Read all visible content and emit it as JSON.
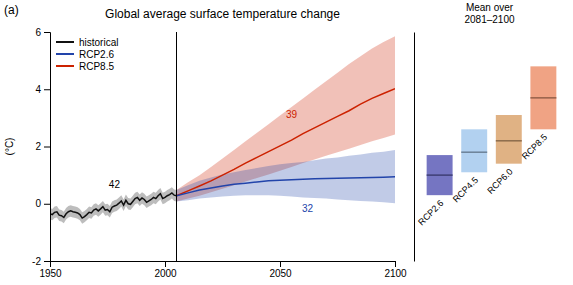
{
  "chart_data": [
    {
      "type": "line",
      "title": "Global average surface temperature change",
      "ylabel": "(°C)",
      "xlim": [
        1950,
        2100
      ],
      "ylim": [
        -2.0,
        6.0
      ],
      "xticks": [
        1950,
        2000,
        2050,
        2100
      ],
      "yticks": [
        -2,
        0,
        2,
        4,
        6
      ],
      "grid": false,
      "legend": "upper left",
      "vline_x": 2005,
      "series": [
        {
          "name": "historical",
          "color": "#111111",
          "x": [
            1950,
            1951,
            1952,
            1953,
            1954,
            1955,
            1956,
            1957,
            1958,
            1959,
            1960,
            1961,
            1962,
            1963,
            1964,
            1965,
            1966,
            1967,
            1968,
            1969,
            1970,
            1971,
            1972,
            1973,
            1974,
            1975,
            1976,
            1977,
            1978,
            1979,
            1980,
            1981,
            1982,
            1983,
            1984,
            1985,
            1986,
            1987,
            1988,
            1989,
            1990,
            1991,
            1992,
            1993,
            1994,
            1995,
            1996,
            1997,
            1998,
            1999,
            2000,
            2001,
            2002,
            2003,
            2004,
            2005
          ],
          "values": [
            -0.35,
            -0.38,
            -0.3,
            -0.28,
            -0.4,
            -0.42,
            -0.48,
            -0.35,
            -0.28,
            -0.25,
            -0.28,
            -0.3,
            -0.32,
            -0.38,
            -0.5,
            -0.45,
            -0.38,
            -0.3,
            -0.32,
            -0.22,
            -0.18,
            -0.25,
            -0.18,
            -0.1,
            -0.22,
            -0.2,
            -0.28,
            -0.12,
            -0.08,
            -0.05,
            0.02,
            0.1,
            -0.05,
            0.12,
            0.0,
            -0.02,
            0.08,
            0.18,
            0.22,
            0.12,
            0.2,
            0.15,
            0.05,
            0.1,
            0.15,
            0.22,
            0.18,
            0.28,
            0.35,
            0.18,
            0.22,
            0.28,
            0.32,
            0.38,
            0.3,
            0.28
          ],
          "low": [
            -0.55,
            -0.58,
            -0.5,
            -0.48,
            -0.6,
            -0.62,
            -0.68,
            -0.55,
            -0.48,
            -0.45,
            -0.48,
            -0.5,
            -0.52,
            -0.58,
            -0.7,
            -0.65,
            -0.58,
            -0.5,
            -0.52,
            -0.42,
            -0.38,
            -0.45,
            -0.38,
            -0.3,
            -0.42,
            -0.4,
            -0.48,
            -0.32,
            -0.28,
            -0.25,
            -0.18,
            -0.1,
            -0.25,
            -0.08,
            -0.2,
            -0.22,
            -0.12,
            -0.02,
            0.02,
            -0.08,
            0.0,
            -0.05,
            -0.15,
            -0.1,
            -0.05,
            0.02,
            -0.02,
            0.08,
            0.15,
            -0.02,
            0.02,
            0.08,
            0.12,
            0.18,
            0.1,
            0.08
          ],
          "high": [
            -0.15,
            -0.18,
            -0.1,
            -0.08,
            -0.2,
            -0.22,
            -0.28,
            -0.15,
            -0.08,
            -0.05,
            -0.08,
            -0.1,
            -0.12,
            -0.18,
            -0.3,
            -0.25,
            -0.18,
            -0.1,
            -0.12,
            -0.02,
            0.02,
            -0.05,
            0.02,
            0.1,
            -0.02,
            0.0,
            -0.08,
            0.08,
            0.12,
            0.15,
            0.22,
            0.3,
            0.15,
            0.32,
            0.2,
            0.18,
            0.28,
            0.38,
            0.42,
            0.32,
            0.4,
            0.35,
            0.25,
            0.3,
            0.35,
            0.42,
            0.38,
            0.48,
            0.55,
            0.38,
            0.42,
            0.48,
            0.52,
            0.58,
            0.5,
            0.48
          ]
        },
        {
          "name": "RCP2.6",
          "color": "#2244aa",
          "x": [
            2005,
            2010,
            2015,
            2020,
            2025,
            2030,
            2035,
            2040,
            2045,
            2050,
            2055,
            2060,
            2065,
            2070,
            2075,
            2080,
            2085,
            2090,
            2095,
            2100
          ],
          "values": [
            0.28,
            0.38,
            0.48,
            0.55,
            0.62,
            0.68,
            0.72,
            0.76,
            0.8,
            0.82,
            0.84,
            0.86,
            0.87,
            0.88,
            0.89,
            0.9,
            0.91,
            0.92,
            0.93,
            0.94
          ],
          "low": [
            0.08,
            0.12,
            0.18,
            0.22,
            0.25,
            0.28,
            0.3,
            0.3,
            0.3,
            0.28,
            0.25,
            0.22,
            0.2,
            0.18,
            0.15,
            0.12,
            0.1,
            0.08,
            0.05,
            0.02
          ],
          "high": [
            0.48,
            0.65,
            0.8,
            0.92,
            1.02,
            1.1,
            1.18,
            1.25,
            1.32,
            1.38,
            1.42,
            1.46,
            1.52,
            1.58,
            1.62,
            1.68,
            1.72,
            1.78,
            1.82,
            1.88
          ]
        },
        {
          "name": "RCP8.5",
          "color": "#cc2200",
          "x": [
            2005,
            2010,
            2015,
            2020,
            2025,
            2030,
            2035,
            2040,
            2045,
            2050,
            2055,
            2060,
            2065,
            2070,
            2075,
            2080,
            2085,
            2090,
            2095,
            2100
          ],
          "values": [
            0.28,
            0.45,
            0.62,
            0.8,
            1.0,
            1.2,
            1.42,
            1.62,
            1.82,
            2.02,
            2.22,
            2.45,
            2.65,
            2.85,
            3.05,
            3.25,
            3.48,
            3.68,
            3.85,
            4.02
          ],
          "low": [
            0.08,
            0.18,
            0.28,
            0.4,
            0.52,
            0.65,
            0.78,
            0.9,
            1.02,
            1.15,
            1.28,
            1.42,
            1.55,
            1.68,
            1.8,
            1.92,
            2.05,
            2.18,
            2.3,
            2.42
          ],
          "high": [
            0.48,
            0.75,
            1.0,
            1.28,
            1.58,
            1.88,
            2.18,
            2.48,
            2.78,
            3.08,
            3.38,
            3.68,
            3.98,
            4.28,
            4.58,
            4.88,
            5.15,
            5.42,
            5.65,
            5.85
          ]
        }
      ],
      "annotations": [
        {
          "text": "(a)"
        },
        {
          "text": "42",
          "x": 1978,
          "y": 0.55,
          "color": "black"
        },
        {
          "text": "39",
          "x": 2055,
          "y": 3.0,
          "color": "#cc2200"
        },
        {
          "text": "32",
          "x": 2062,
          "y": -0.3,
          "color": "#2244aa"
        }
      ]
    },
    {
      "type": "bar",
      "title": "Mean over\n2081–2100",
      "categories": [
        "RCP2.6",
        "RCP4.5",
        "RCP6.0",
        "RCP8.5"
      ],
      "values": [
        1.0,
        1.8,
        2.2,
        3.7
      ],
      "low": [
        0.3,
        1.1,
        1.4,
        2.6
      ],
      "high": [
        1.7,
        2.6,
        3.1,
        4.8
      ],
      "colors": [
        "#6666bb",
        "#aaccee",
        "#ddaa77",
        "#ee9977"
      ],
      "ylim": [
        -2.0,
        6.0
      ],
      "tick_labels": false
    }
  ]
}
